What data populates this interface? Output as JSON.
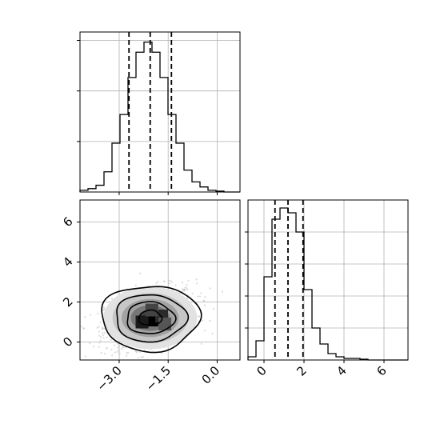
{
  "chart_data": [
    {
      "type": "histogram",
      "panel": "top-left",
      "xlim": [
        -4.2,
        0.7
      ],
      "bin_edges": [
        -4.2,
        -3.955,
        -3.71,
        -3.465,
        -3.22,
        -2.975,
        -2.73,
        -2.485,
        -2.24,
        -1.995,
        -1.75,
        -1.505,
        -1.26,
        -1.015,
        -0.77,
        -0.525,
        -0.28,
        -0.035,
        0.21,
        0.455,
        0.7
      ],
      "counts": [
        1,
        2,
        4,
        12,
        29,
        46,
        68,
        83,
        89,
        83,
        68,
        46,
        29,
        13,
        6,
        3,
        1,
        0.5,
        0,
        0
      ],
      "quantiles": [
        -2.7,
        -2.05,
        -1.4
      ],
      "ylim": [
        0,
        95
      ],
      "grid": true
    },
    {
      "type": "scatter-density",
      "panel": "bottom-left",
      "xlim": [
        -4.2,
        0.7
      ],
      "ylim": [
        -0.9,
        7.1
      ],
      "xticks": [
        "−3.0",
        "−1.5",
        "0.0"
      ],
      "yticks": [
        "0",
        "2",
        "4",
        "6"
      ],
      "center": [
        -2.05,
        1.2
      ],
      "spread": [
        0.7,
        0.95
      ],
      "contour_levels": [
        "0.5σ",
        "1σ",
        "1.5σ",
        "2σ"
      ],
      "grid": true
    },
    {
      "type": "histogram",
      "panel": "bottom-right",
      "xlim": [
        -0.8,
        7.2
      ],
      "xticks": [
        "0",
        "2",
        "4",
        "6"
      ],
      "bin_edges": [
        -0.8,
        -0.4,
        0.0,
        0.4,
        0.8,
        1.2,
        1.6,
        2.0,
        2.4,
        2.8,
        3.2,
        3.6,
        4.0,
        4.4,
        4.8,
        5.2,
        5.6,
        6.0,
        6.4,
        6.8,
        7.2
      ],
      "counts": [
        2,
        12,
        52,
        88,
        95,
        92,
        80,
        44,
        20,
        10,
        4,
        2,
        1,
        1,
        0.5,
        0,
        0,
        0,
        0,
        0
      ],
      "quantiles": [
        0.55,
        1.2,
        1.95
      ],
      "ylim": [
        0,
        100
      ],
      "grid": true
    }
  ]
}
